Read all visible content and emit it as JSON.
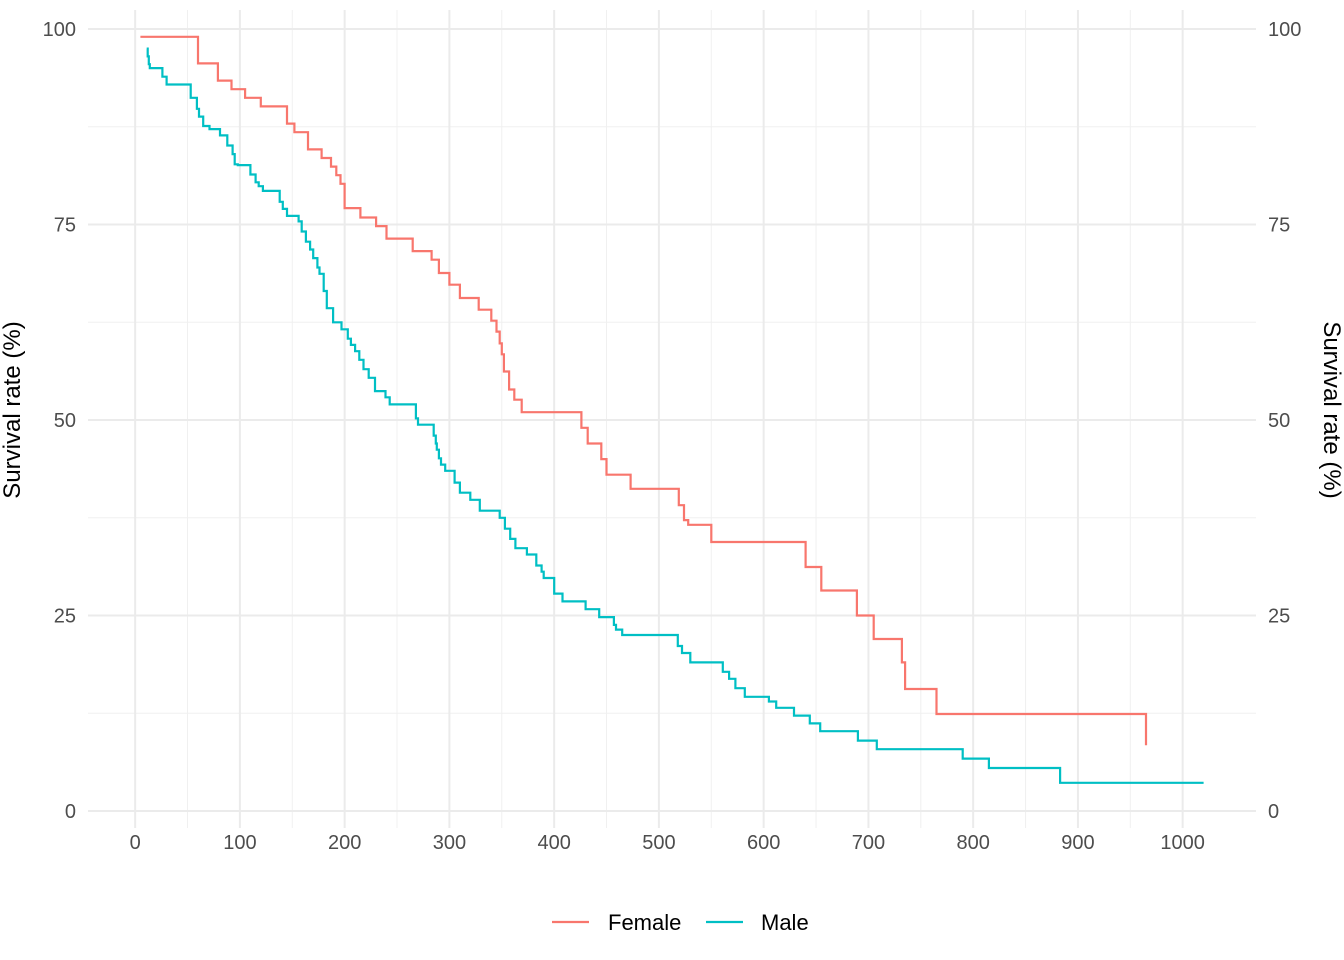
{
  "chart_data": {
    "type": "line",
    "step": true,
    "ylabel_left": "Survival rate (%)",
    "ylabel_right": "Survival rate (%)",
    "xlim": [
      -45,
      1070
    ],
    "ylim": [
      0,
      100
    ],
    "x_ticks": [
      0,
      100,
      200,
      300,
      400,
      500,
      600,
      700,
      800,
      900,
      1000
    ],
    "x_tick_labels": [
      "0",
      "100",
      "200",
      "300",
      "400",
      "500",
      "600",
      "700",
      "800",
      "900",
      "1000"
    ],
    "y_ticks": [
      0,
      25,
      50,
      75,
      100
    ],
    "y_tick_labels": [
      "0",
      "25",
      "50",
      "75",
      "100"
    ],
    "grid": true,
    "legend_position": "bottom",
    "series": [
      {
        "name": "Female",
        "color": "#F8766D",
        "x": [
          5,
          60,
          79,
          92,
          105,
          120,
          145,
          152,
          165,
          178,
          187,
          192,
          196,
          200,
          215,
          230,
          240,
          265,
          283,
          290,
          300,
          310,
          328,
          340,
          345,
          348,
          350,
          352,
          357,
          362,
          369,
          387,
          426,
          432,
          445,
          450,
          455,
          473,
          519,
          524,
          528,
          550,
          574,
          640,
          655,
          689,
          705,
          732,
          735,
          765,
          965
        ],
        "y": [
          99,
          95.6,
          93.4,
          92.3,
          91.2,
          90.1,
          87.9,
          86.8,
          84.6,
          83.5,
          82.4,
          81.3,
          80.2,
          77.1,
          75.9,
          74.8,
          73.2,
          71.6,
          70.5,
          68.8,
          67.3,
          65.6,
          64.1,
          62.7,
          61.3,
          59.8,
          58.4,
          56.2,
          53.9,
          52.6,
          51.0,
          51.0,
          49.0,
          47.0,
          45.0,
          43.0,
          43.0,
          41.2,
          39.1,
          37.2,
          36.6,
          34.4,
          34.4,
          31.2,
          28.2,
          25.0,
          22.0,
          19.0,
          15.6,
          12.4,
          8.4
        ],
        "end_x": 965
      },
      {
        "name": "Male",
        "color": "#00BFC4",
        "x": [
          11,
          12,
          13,
          14,
          26,
          30,
          53,
          59,
          61,
          65,
          71,
          81,
          88,
          93,
          95,
          98,
          110,
          115,
          118,
          122,
          135,
          138,
          141,
          145,
          156,
          159,
          163,
          167,
          170,
          174,
          176,
          180,
          183,
          189,
          197,
          203,
          206,
          210,
          214,
          218,
          223,
          229,
          239,
          243,
          268,
          270,
          285,
          287,
          288,
          290,
          292,
          296,
          305,
          310,
          320,
          329,
          348,
          353,
          358,
          363,
          374,
          383,
          388,
          390,
          393,
          400,
          400,
          408,
          430,
          443,
          457,
          459,
          461,
          465,
          470,
          483,
          518,
          522,
          530,
          540,
          561,
          567,
          573,
          582,
          595,
          605,
          612,
          629,
          644,
          654,
          660,
          663,
          668,
          675,
          690,
          708,
          763,
          790,
          815,
          883,
          1020
        ],
        "y": [
          97.5,
          96.5,
          95.5,
          95.0,
          93.9,
          92.9,
          91.2,
          89.8,
          88.8,
          87.6,
          87.2,
          86.4,
          85.1,
          84.0,
          82.7,
          82.6,
          81.4,
          80.4,
          79.9,
          79.3,
          79.3,
          77.9,
          77.0,
          76.1,
          75.4,
          74.1,
          72.8,
          71.8,
          70.7,
          69.5,
          68.7,
          66.5,
          64.3,
          62.5,
          61.6,
          60.4,
          59.6,
          58.8,
          57.7,
          56.5,
          55.4,
          53.7,
          52.9,
          52.0,
          50.2,
          49.4,
          48.0,
          47.0,
          46.2,
          45.1,
          44.3,
          43.5,
          42.0,
          40.7,
          39.8,
          38.4,
          37.5,
          36.1,
          34.8,
          33.6,
          32.8,
          31.4,
          30.6,
          29.8,
          29.8,
          29.8,
          27.8,
          26.8,
          25.8,
          24.8,
          23.8,
          23.2,
          23.2,
          22.5,
          22.5,
          22.5,
          21.1,
          20.2,
          19.0,
          19.0,
          17.8,
          16.9,
          15.7,
          14.6,
          14.6,
          14.0,
          13.2,
          12.2,
          11.2,
          10.2,
          10.2,
          10.2,
          10.2,
          10.2,
          9.0,
          7.9,
          7.9,
          6.7,
          5.5,
          3.6,
          3.6
        ],
        "end_x": 1020
      }
    ]
  }
}
